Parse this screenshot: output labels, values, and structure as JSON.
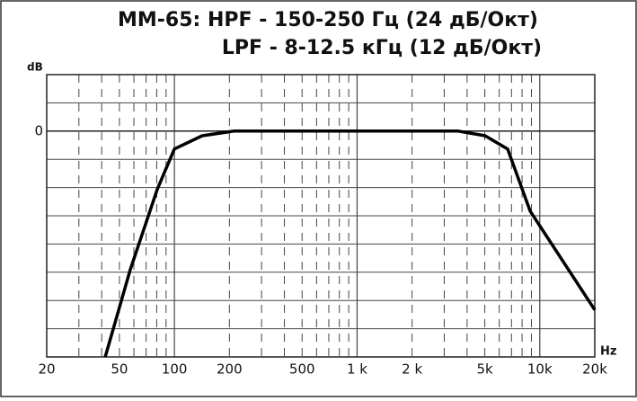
{
  "chart_data": {
    "type": "line",
    "title": "MM-65: HPF - 150-250 Гц (24 дБ/Окт)",
    "subtitle": "LPF - 8-12.5 кГц (12 дБ/Окт)",
    "y_label": "dB",
    "x_label": "Hz",
    "log_x": true,
    "grid": true,
    "x": [
      41.8,
      57.3,
      80.5,
      100,
      141.9,
      211,
      3582,
      5024,
      6671,
      8855,
      20000
    ],
    "series": [
      {
        "color": "#000000",
        "values": [
          -48,
          -29.5,
          -12.4,
          -3.8,
          -1,
          0,
          0,
          -1,
          -3.8,
          -17,
          -38
        ]
      }
    ],
    "xlim": [
      20,
      20000
    ],
    "ylim": [
      -48,
      12
    ],
    "xticks": [
      20,
      50,
      100,
      200,
      500,
      {
        "value": 1000,
        "label": "1 k"
      },
      {
        "value": 2000,
        "label": "2 k"
      },
      {
        "value": 5000,
        "label": "5k"
      },
      {
        "value": 10000,
        "label": "10k"
      },
      {
        "value": 20000,
        "label": "20k"
      }
    ],
    "x_minor_grid": [
      30,
      40,
      60,
      70,
      80,
      90,
      300,
      400,
      600,
      700,
      800,
      900,
      3000,
      4000,
      6000,
      7000,
      8000,
      9000
    ],
    "yticks": [
      0
    ],
    "y_minor_grid": [
      6,
      -6,
      -12,
      -18,
      -24,
      -30,
      -36,
      -42
    ]
  }
}
